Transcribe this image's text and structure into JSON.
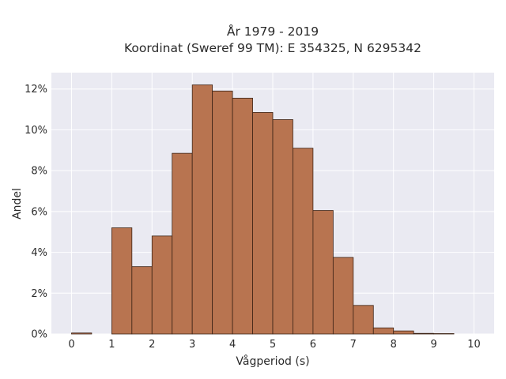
{
  "chart_data": {
    "type": "bar",
    "title_line1": "År 1979 - 2019",
    "title_line2": "Koordinat (Sweref 99 TM): E 354325, N 6295342",
    "xlabel": "Vågperiod (s)",
    "ylabel": "Andel",
    "bin_width": 0.5,
    "bin_starts": [
      0,
      0.5,
      1,
      1.5,
      2,
      2.5,
      3,
      3.5,
      4,
      4.5,
      5,
      5.5,
      6,
      6.5,
      7,
      7.5,
      8,
      8.5,
      9,
      9.5
    ],
    "values": [
      0.05,
      0,
      5.2,
      3.3,
      4.8,
      8.85,
      12.2,
      11.9,
      11.55,
      10.85,
      10.5,
      9.1,
      6.05,
      3.75,
      1.4,
      0.3,
      0.15,
      0.03,
      0.02,
      0
    ],
    "xlim": [
      -0.5,
      10.5
    ],
    "ylim": [
      0,
      12.8
    ],
    "x_ticks": [
      0,
      1,
      2,
      3,
      4,
      5,
      6,
      7,
      8,
      9,
      10
    ],
    "x_tick_labels": [
      "0",
      "1",
      "2",
      "3",
      "4",
      "5",
      "6",
      "7",
      "8",
      "9",
      "10"
    ],
    "y_ticks": [
      0,
      2,
      4,
      6,
      8,
      10,
      12
    ],
    "y_tick_labels": [
      "0%",
      "2%",
      "4%",
      "6%",
      "8%",
      "10%",
      "12%"
    ],
    "grid": true,
    "colors": {
      "bar": "#b87450",
      "bar_edge": "#3d2416",
      "plot_background": "#eaeaf2",
      "grid": "#ffffff"
    }
  }
}
